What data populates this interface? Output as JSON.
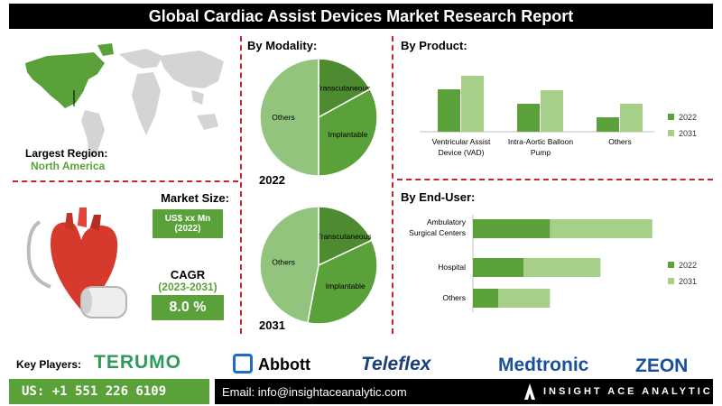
{
  "header": {
    "title": "Global Cardiac Assist Devices Market Research Report"
  },
  "region": {
    "label": "Largest Region:",
    "value": "North America"
  },
  "market_size": {
    "label": "Market Size:",
    "value": "US$ xx Mn",
    "year": "(2022)"
  },
  "cagr": {
    "label": "CAGR",
    "period": "(2023-2031)",
    "value": "8.0 %"
  },
  "modality": {
    "heading": "By Modality:",
    "year1": "2022",
    "year2": "2031"
  },
  "product": {
    "heading": "By Product:"
  },
  "end_user": {
    "heading": "By End-User:"
  },
  "colors": {
    "dark_green": "#5aa13a",
    "light_green": "#a6cf8a",
    "mid_green": "#4f8f2f",
    "red": "#c0262d"
  },
  "chart_data": [
    {
      "type": "pie",
      "title": "2022",
      "labels": [
        "Transcutaneous",
        "Implantable",
        "Others"
      ],
      "values": [
        17,
        33,
        50
      ],
      "colors": [
        "#4e8a30",
        "#5aa13a",
        "#93c47d"
      ]
    },
    {
      "type": "pie",
      "title": "2031",
      "labels": [
        "Transcutaneous",
        "Implantable",
        "Others"
      ],
      "values": [
        18,
        35,
        47
      ],
      "colors": [
        "#4e8a30",
        "#5aa13a",
        "#93c47d"
      ]
    },
    {
      "type": "bar",
      "categories": [
        "Ventricular Assist Device (VAD)",
        "Intra-Aortic Balloon Pump",
        "Others"
      ],
      "series": [
        {
          "name": "2022",
          "values": [
            47,
            31,
            16
          ]
        },
        {
          "name": "2031",
          "values": [
            62,
            46,
            31
          ]
        }
      ],
      "ylim": [
        0,
        70
      ],
      "legend": "right"
    },
    {
      "type": "bar",
      "orientation": "horizontal",
      "categories": [
        "Ambulatory Surgical Centers",
        "Hospital",
        "Others"
      ],
      "series": [
        {
          "name": "2022",
          "values": [
            61,
            40,
            20
          ]
        },
        {
          "name": "2031",
          "values": [
            81,
            61,
            41
          ]
        }
      ],
      "stacked": true,
      "xlim": [
        0,
        200
      ],
      "legend": "right"
    }
  ],
  "footer": {
    "key_players_label": "Key Players:",
    "players": [
      "TERUMO",
      "Abbott",
      "Teleflex",
      "Medtronic",
      "ZEON"
    ],
    "phone": "US: +1 551 226 6109",
    "email": "Email: info@insightaceanalytic.com",
    "brand": "INSIGHT ACE ANALYTIC"
  }
}
